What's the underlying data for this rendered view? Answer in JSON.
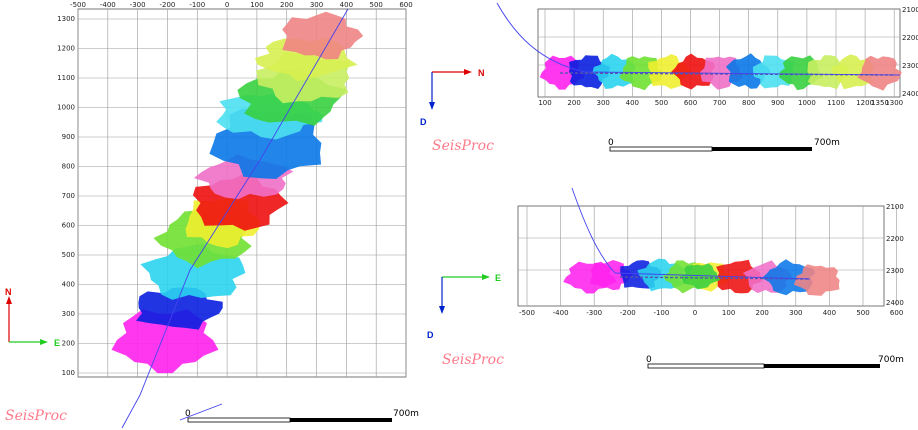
{
  "watermark": "SeisProc",
  "plan_view": {
    "x_ticks": [
      "-500",
      "-400",
      "-300",
      "-200",
      "-100",
      "0",
      "100",
      "200",
      "300",
      "400",
      "500",
      "600"
    ],
    "y_ticks": [
      "1300",
      "1200",
      "1100",
      "1000",
      "900",
      "800",
      "700",
      "600",
      "500",
      "400",
      "300",
      "200",
      "100"
    ],
    "compass": {
      "north": "N",
      "east": "E"
    },
    "scale": {
      "start": "0",
      "end": "700m"
    }
  },
  "side_view_top": {
    "x_ticks": [
      "100",
      "200",
      "300",
      "400",
      "500",
      "600",
      "700",
      "800",
      "900",
      "1000",
      "1100",
      "1200",
      "1300",
      "1350"
    ],
    "depth_ticks": [
      "2100",
      "2200",
      "2300",
      "2400"
    ],
    "compass": {
      "north": "N",
      "down": "D"
    },
    "scale": {
      "start": "0",
      "end": "700m"
    }
  },
  "side_view_bottom": {
    "x_ticks": [
      "-500",
      "-400",
      "-300",
      "-200",
      "-100",
      "0",
      "100",
      "200",
      "300",
      "400",
      "500",
      "600"
    ],
    "depth_ticks": [
      "2100",
      "2200",
      "2300",
      "2400"
    ],
    "compass": {
      "east": "E",
      "down": "D"
    },
    "scale": {
      "start": "0",
      "end": "700m"
    }
  },
  "colors": {
    "stages": [
      "#ff22ee",
      "#0a1fe0",
      "#2ad4ee",
      "#70e030",
      "#f0ee30",
      "#ee1010",
      "#f070c8",
      "#0a78e8",
      "#4be0f0",
      "#38cf40",
      "#c8ee60",
      "#d8f050",
      "#f08484"
    ],
    "north_arrow": "#dd0000",
    "east_arrow": "#22cc22",
    "down_arrow": "#0022cc",
    "well": "#4444ee"
  }
}
